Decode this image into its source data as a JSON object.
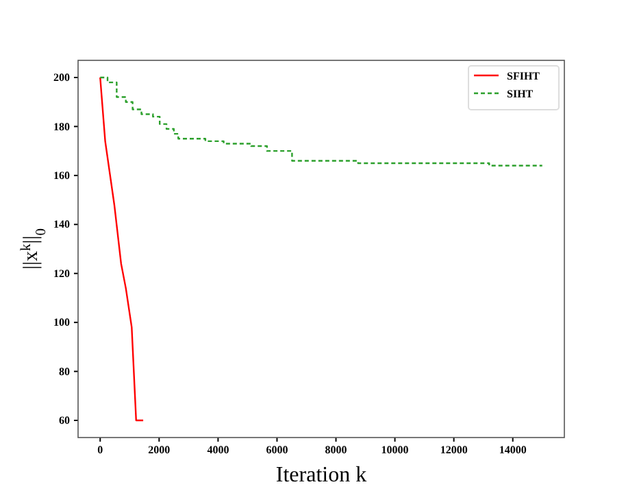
{
  "chart_data": {
    "type": "line",
    "xlabel": "Iteration k",
    "ylabel": "||x$^{k}$||$_{0}$",
    "xlim": [
      -750,
      15750
    ],
    "ylim": [
      53,
      207
    ],
    "xticks": [
      0,
      2000,
      4000,
      6000,
      8000,
      10000,
      12000,
      14000
    ],
    "yticks": [
      60,
      80,
      100,
      120,
      140,
      160,
      180,
      200
    ],
    "legend": "top right",
    "grid": false,
    "line_style": "solid",
    "series": [
      {
        "name": "SFIHT",
        "color": "#ff0000",
        "x": [
          0,
          170,
          480,
          710,
          870,
          1070,
          1220,
          1460
        ],
        "values": [
          200,
          174,
          148,
          124,
          114,
          98,
          60,
          60
        ]
      },
      {
        "name": "SIHT",
        "color": "#2ca02c",
        "type": "step",
        "line_style": "dashed",
        "x": [
          0,
          250,
          560,
          870,
          1100,
          1400,
          1790,
          2020,
          2250,
          2500,
          2650,
          3570,
          4190,
          5120,
          5660,
          6510,
          8750,
          13200,
          15000
        ],
        "values": [
          200,
          198,
          192,
          190,
          187,
          185,
          184,
          181,
          179,
          177,
          175,
          174,
          173,
          172,
          170,
          166,
          165,
          164,
          164
        ]
      }
    ]
  }
}
